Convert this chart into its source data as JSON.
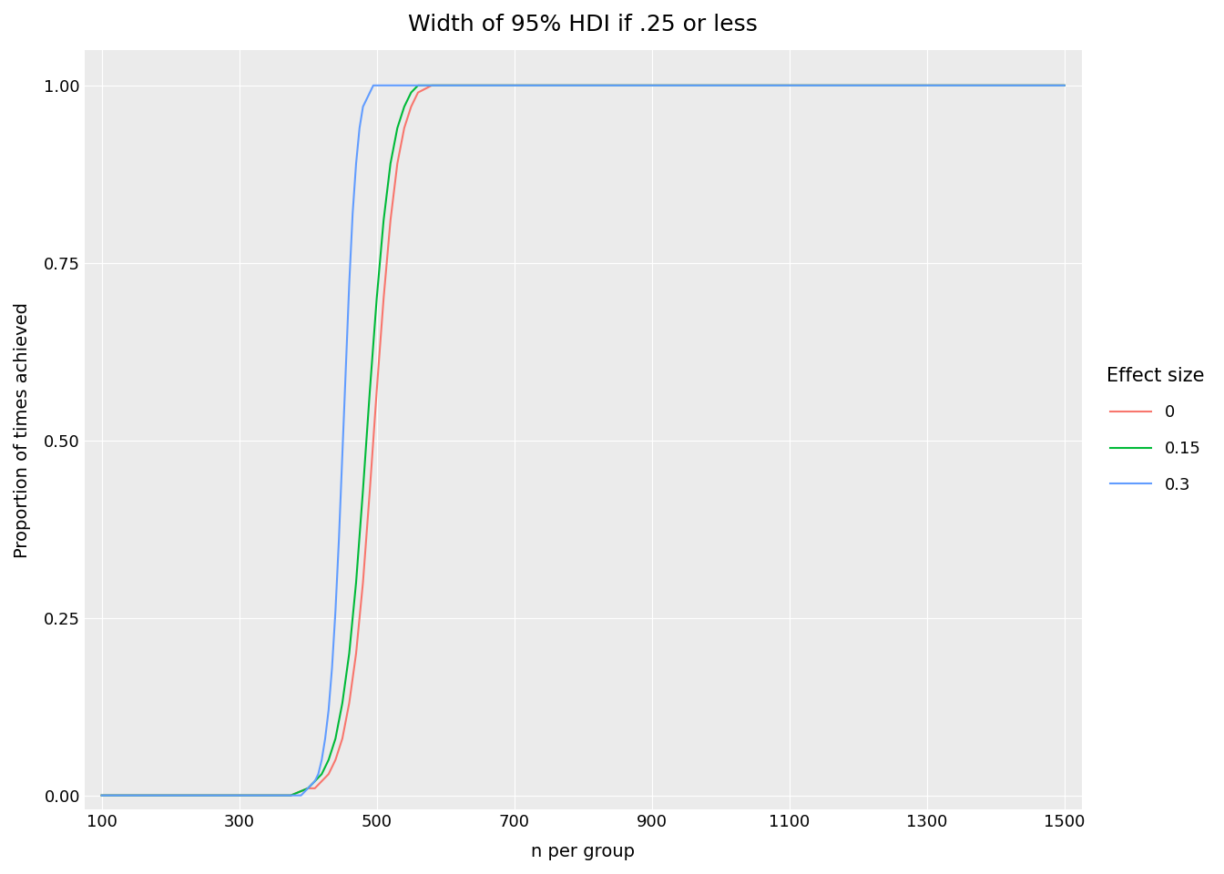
{
  "title": "Width of 95% HDI if .25 or less",
  "xlabel": "n per group",
  "ylabel": "Proportion of times achieved",
  "background_color": "#ffffff",
  "panel_background": "#ebebeb",
  "grid_color": "#ffffff",
  "x_ticks": [
    100,
    300,
    500,
    700,
    900,
    1100,
    1300,
    1500
  ],
  "y_ticks": [
    0.0,
    0.25,
    0.5,
    0.75,
    1.0
  ],
  "xlim": [
    75,
    1525
  ],
  "ylim": [
    -0.02,
    1.05
  ],
  "series": [
    {
      "label": "0",
      "color": "#F8766D",
      "x": [
        100,
        200,
        300,
        350,
        375,
        400,
        410,
        420,
        430,
        440,
        450,
        460,
        470,
        480,
        490,
        500,
        510,
        520,
        530,
        540,
        550,
        560,
        580,
        600,
        650,
        700,
        800,
        900,
        1000,
        1100,
        1200,
        1300,
        1400,
        1500
      ],
      "y": [
        0.0,
        0.0,
        0.0,
        0.0,
        0.0,
        0.01,
        0.01,
        0.02,
        0.03,
        0.05,
        0.08,
        0.13,
        0.2,
        0.3,
        0.43,
        0.57,
        0.7,
        0.81,
        0.89,
        0.94,
        0.97,
        0.99,
        1.0,
        1.0,
        1.0,
        1.0,
        1.0,
        1.0,
        1.0,
        1.0,
        1.0,
        1.0,
        1.0,
        1.0
      ]
    },
    {
      "label": "0.15",
      "color": "#00BA38",
      "x": [
        100,
        200,
        300,
        350,
        375,
        400,
        410,
        420,
        430,
        440,
        450,
        460,
        470,
        480,
        490,
        500,
        510,
        520,
        530,
        540,
        550,
        560,
        580,
        600,
        650,
        700,
        800,
        900,
        1000,
        1100,
        1200,
        1300,
        1400,
        1500
      ],
      "y": [
        0.0,
        0.0,
        0.0,
        0.0,
        0.0,
        0.01,
        0.02,
        0.03,
        0.05,
        0.08,
        0.13,
        0.2,
        0.3,
        0.43,
        0.57,
        0.7,
        0.81,
        0.89,
        0.94,
        0.97,
        0.99,
        1.0,
        1.0,
        1.0,
        1.0,
        1.0,
        1.0,
        1.0,
        1.0,
        1.0,
        1.0,
        1.0,
        1.0,
        1.0
      ]
    },
    {
      "label": "0.3",
      "color": "#619CFF",
      "x": [
        100,
        200,
        300,
        350,
        375,
        390,
        400,
        410,
        415,
        420,
        425,
        430,
        435,
        440,
        445,
        450,
        455,
        460,
        465,
        470,
        475,
        480,
        485,
        490,
        495,
        500,
        510,
        520,
        530,
        540,
        550,
        560,
        580,
        600,
        650,
        700,
        800,
        900,
        1000,
        1100,
        1200,
        1300,
        1400,
        1500
      ],
      "y": [
        0.0,
        0.0,
        0.0,
        0.0,
        0.0,
        0.0,
        0.01,
        0.02,
        0.03,
        0.05,
        0.08,
        0.12,
        0.18,
        0.26,
        0.36,
        0.48,
        0.6,
        0.72,
        0.82,
        0.89,
        0.94,
        0.97,
        0.98,
        0.99,
        1.0,
        1.0,
        1.0,
        1.0,
        1.0,
        1.0,
        1.0,
        1.0,
        1.0,
        1.0,
        1.0,
        1.0,
        1.0,
        1.0,
        1.0,
        1.0,
        1.0,
        1.0,
        1.0,
        1.0
      ]
    }
  ],
  "legend_title": "Effect size",
  "legend_title_fontsize": 15,
  "legend_fontsize": 13,
  "title_fontsize": 18,
  "axis_label_fontsize": 14,
  "tick_fontsize": 13,
  "line_width": 1.5
}
